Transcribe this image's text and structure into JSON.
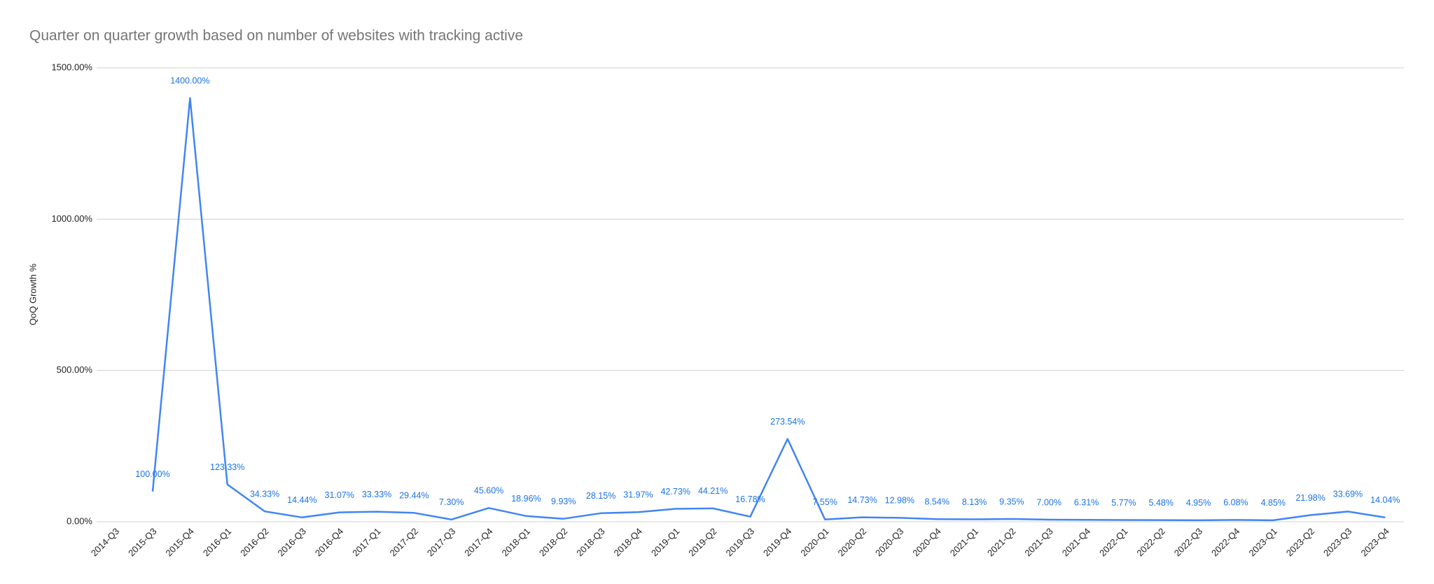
{
  "chart_data": {
    "type": "line",
    "title": "Quarter on quarter growth based on number of websites with tracking active",
    "y_label": "QoQ Growth %",
    "categories": [
      "2014-Q3",
      "2015-Q3",
      "2015-Q4",
      "2016-Q1",
      "2016-Q2",
      "2016-Q3",
      "2016-Q4",
      "2017-Q1",
      "2017-Q2",
      "2017-Q3",
      "2017-Q4",
      "2018-Q1",
      "2018-Q2",
      "2018-Q3",
      "2018-Q4",
      "2019-Q1",
      "2019-Q2",
      "2019-Q3",
      "2019-Q4",
      "2020-Q1",
      "2020-Q2",
      "2020-Q3",
      "2020-Q4",
      "2021-Q1",
      "2021-Q2",
      "2021-Q3",
      "2021-Q4",
      "2022-Q1",
      "2022-Q2",
      "2022-Q3",
      "2022-Q4",
      "2023-Q1",
      "2023-Q2",
      "2023-Q3",
      "2023-Q4"
    ],
    "values": [
      null,
      100,
      1400,
      123.33,
      34.33,
      14.44,
      31.07,
      33.33,
      29.44,
      7.3,
      45.6,
      18.96,
      9.93,
      28.15,
      31.97,
      42.73,
      44.21,
      16.78,
      273.54,
      7.55,
      14.73,
      12.98,
      8.54,
      8.13,
      9.35,
      7,
      6.31,
      5.77,
      5.48,
      4.95,
      6.08,
      4.85,
      21.98,
      33.69,
      14.04
    ],
    "value_labels": [
      null,
      "100.00%",
      "1400.00%",
      "123.33%",
      "34.33%",
      "14.44%",
      "31.07%",
      "33.33%",
      "29.44%",
      "7.30%",
      "45.60%",
      "18.96%",
      "9.93%",
      "28.15%",
      "31.97%",
      "42.73%",
      "44.21%",
      "16.78%",
      "273.54%",
      "7.55%",
      "14.73%",
      "12.98%",
      "8.54%",
      "8.13%",
      "9.35%",
      "7.00%",
      "6.31%",
      "5.77%",
      "5.48%",
      "4.95%",
      "6.08%",
      "4.85%",
      "21.98%",
      "33.69%",
      "14.04%"
    ],
    "color": "#4285f4",
    "ylim": [
      0,
      1500
    ],
    "yticks": [
      {
        "value": 0,
        "label": "0.00%"
      },
      {
        "value": 500,
        "label": "500.00%"
      },
      {
        "value": 1000,
        "label": "1000.00%"
      },
      {
        "value": 1500,
        "label": "1500.00%"
      }
    ],
    "grid": true
  }
}
